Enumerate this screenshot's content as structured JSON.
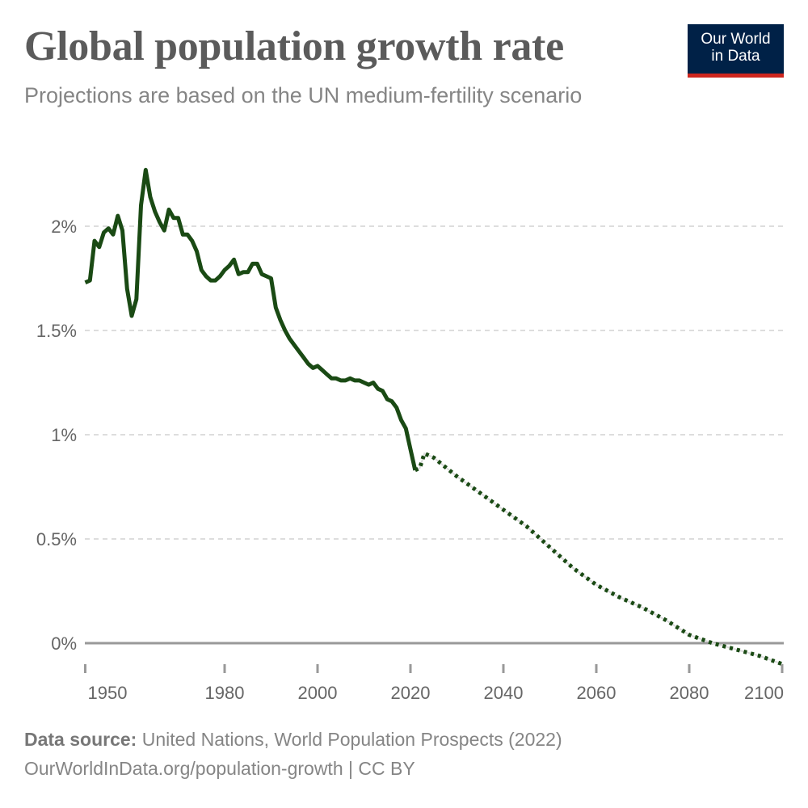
{
  "header": {
    "title": "Global population growth rate",
    "subtitle": "Projections are based on the UN medium-fertility scenario",
    "logo_line1": "Our World",
    "logo_line2": "in Data"
  },
  "footer": {
    "source_label": "Data source:",
    "source_text": " United Nations, World Population Prospects (2022)",
    "url": "OurWorldInData.org/population-growth",
    "license": " | CC BY"
  },
  "colors": {
    "line": "#1a4a14",
    "logo_bg": "#002147",
    "logo_accent": "#ce261e",
    "grid": "#dddddd",
    "zero_line": "#999999"
  },
  "chart_data": {
    "type": "line",
    "title": "Global population growth rate",
    "xlim": [
      1950,
      2100
    ],
    "ylim": [
      -0.1,
      2.27
    ],
    "grid": "horizontal dashed",
    "x_ticks": [
      1950,
      1980,
      2000,
      2020,
      2040,
      2060,
      2080,
      2100
    ],
    "x_tick_labels": [
      "1950",
      "1980",
      "2000",
      "2020",
      "2040",
      "2060",
      "2080",
      "2100"
    ],
    "y_ticks": [
      0,
      0.5,
      1,
      1.5,
      2
    ],
    "y_tick_labels": [
      "0%",
      "0.5%",
      "1%",
      "1.5%",
      "2%"
    ],
    "series": [
      {
        "style": "solid",
        "x": [
          1950,
          1951,
          1952,
          1953,
          1954,
          1955,
          1956,
          1957,
          1958,
          1959,
          1960,
          1961,
          1962,
          1963,
          1964,
          1965,
          1966,
          1967,
          1968,
          1969,
          1970,
          1971,
          1972,
          1973,
          1974,
          1975,
          1976,
          1977,
          1978,
          1979,
          1980,
          1981,
          1982,
          1983,
          1984,
          1985,
          1986,
          1987,
          1988,
          1989,
          1990,
          1991,
          1992,
          1993,
          1994,
          1995,
          1996,
          1997,
          1998,
          1999,
          2000,
          2001,
          2002,
          2003,
          2004,
          2005,
          2006,
          2007,
          2008,
          2009,
          2010,
          2011,
          2012,
          2013,
          2014,
          2015,
          2016,
          2017,
          2018,
          2019,
          2020,
          2021
        ],
        "y": [
          1.73,
          1.74,
          1.93,
          1.9,
          1.97,
          1.99,
          1.96,
          2.05,
          1.98,
          1.7,
          1.57,
          1.65,
          2.1,
          2.27,
          2.14,
          2.07,
          2.02,
          1.98,
          2.08,
          2.04,
          2.04,
          1.96,
          1.96,
          1.93,
          1.88,
          1.79,
          1.76,
          1.74,
          1.74,
          1.76,
          1.79,
          1.81,
          1.84,
          1.77,
          1.78,
          1.78,
          1.82,
          1.82,
          1.77,
          1.76,
          1.75,
          1.61,
          1.55,
          1.5,
          1.46,
          1.43,
          1.4,
          1.37,
          1.34,
          1.32,
          1.33,
          1.31,
          1.29,
          1.27,
          1.27,
          1.26,
          1.26,
          1.27,
          1.26,
          1.26,
          1.25,
          1.24,
          1.25,
          1.22,
          1.21,
          1.17,
          1.16,
          1.13,
          1.07,
          1.03,
          0.93,
          0.83
        ]
      },
      {
        "style": "dotted",
        "x": [
          2021,
          2022,
          2023,
          2025,
          2030,
          2035,
          2040,
          2045,
          2050,
          2055,
          2060,
          2065,
          2070,
          2075,
          2080,
          2085,
          2090,
          2095,
          2100
        ],
        "y": [
          0.83,
          0.84,
          0.91,
          0.89,
          0.8,
          0.72,
          0.64,
          0.56,
          0.46,
          0.36,
          0.28,
          0.22,
          0.17,
          0.11,
          0.04,
          0.0,
          -0.03,
          -0.06,
          -0.1
        ]
      }
    ]
  }
}
